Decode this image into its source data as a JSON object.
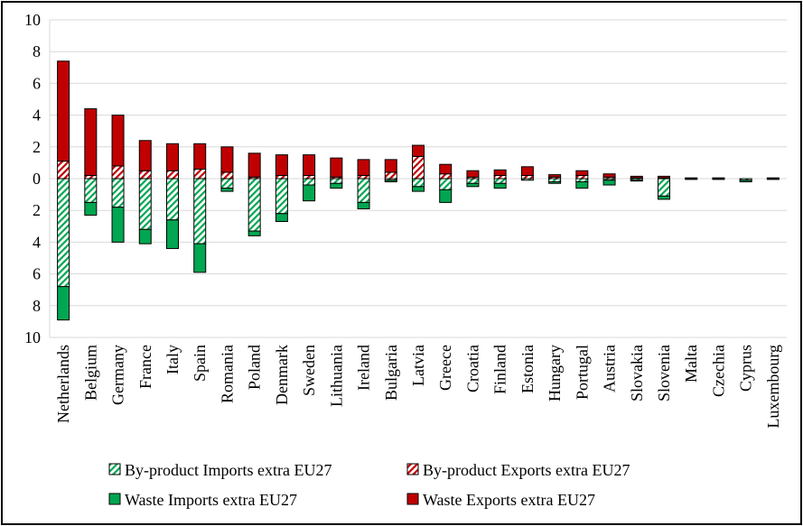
{
  "chart_data": {
    "type": "bar",
    "stacked": true,
    "diverging": true,
    "title": "",
    "xlabel": "",
    "ylabel": "",
    "ylim": [
      -10,
      10
    ],
    "y_ticks": [
      10,
      8,
      6,
      4,
      2,
      0,
      2,
      4,
      6,
      8,
      10
    ],
    "grid": true,
    "legend_position": "bottom",
    "categories": [
      "Netherlands",
      "Belgium",
      "Germany",
      "France",
      "Italy",
      "Spain",
      "Romania",
      "Poland",
      "Denmark",
      "Sweden",
      "Lithuania",
      "Ireland",
      "Bulgaria",
      "Latvia",
      "Greece",
      "Croatia",
      "Finland",
      "Estonia",
      "Hungary",
      "Portugal",
      "Austria",
      "Slovakia",
      "Slovenia",
      "Malta",
      "Czechia",
      "Cyprus",
      "Luxembourg"
    ],
    "series": [
      {
        "name": "By-product Imports extra EU27",
        "direction": "down",
        "color": "#00a651",
        "pattern": "hatched",
        "values": [
          6.8,
          1.5,
          1.8,
          3.2,
          2.6,
          4.1,
          0.6,
          3.3,
          2.2,
          0.4,
          0.3,
          1.5,
          0.1,
          0.5,
          0.7,
          0.3,
          0.3,
          0.1,
          0.2,
          0.2,
          0.1,
          0.1,
          1.1,
          0.05,
          0.05,
          0.1,
          0.05
        ]
      },
      {
        "name": "Waste Imports extra EU27",
        "direction": "down",
        "color": "#00a651",
        "pattern": "solid",
        "values": [
          2.1,
          0.8,
          2.2,
          0.9,
          1.8,
          1.8,
          0.2,
          0.3,
          0.5,
          1.0,
          0.3,
          0.4,
          0.1,
          0.3,
          0.8,
          0.2,
          0.3,
          0.0,
          0.1,
          0.4,
          0.3,
          0.05,
          0.2,
          0.0,
          0.0,
          0.1,
          0.0
        ]
      },
      {
        "name": "By-product Exports extra EU27",
        "direction": "up",
        "color": "#c00000",
        "pattern": "hatched",
        "values": [
          1.1,
          0.2,
          0.8,
          0.5,
          0.5,
          0.6,
          0.4,
          0.1,
          0.2,
          0.2,
          0.1,
          0.2,
          0.4,
          1.4,
          0.3,
          0.1,
          0.2,
          0.2,
          0.1,
          0.2,
          0.1,
          0.05,
          0.05,
          0.05,
          0.05,
          0.0,
          0.05
        ]
      },
      {
        "name": "Waste Exports extra EU27",
        "direction": "up",
        "color": "#c00000",
        "pattern": "solid",
        "values": [
          6.3,
          4.2,
          3.2,
          1.9,
          1.7,
          1.6,
          1.6,
          1.5,
          1.3,
          1.3,
          1.2,
          1.0,
          0.8,
          0.7,
          0.6,
          0.4,
          0.35,
          0.55,
          0.15,
          0.3,
          0.2,
          0.1,
          0.1,
          0.0,
          0.0,
          0.0,
          0.0
        ]
      }
    ],
    "legend": [
      {
        "label": "By-product Imports extra EU27",
        "series": 0
      },
      {
        "label": "By-product Exports extra EU27",
        "series": 2
      },
      {
        "label": "Waste Imports extra EU27",
        "series": 1
      },
      {
        "label": "Waste Exports extra EU27",
        "series": 3
      }
    ]
  }
}
